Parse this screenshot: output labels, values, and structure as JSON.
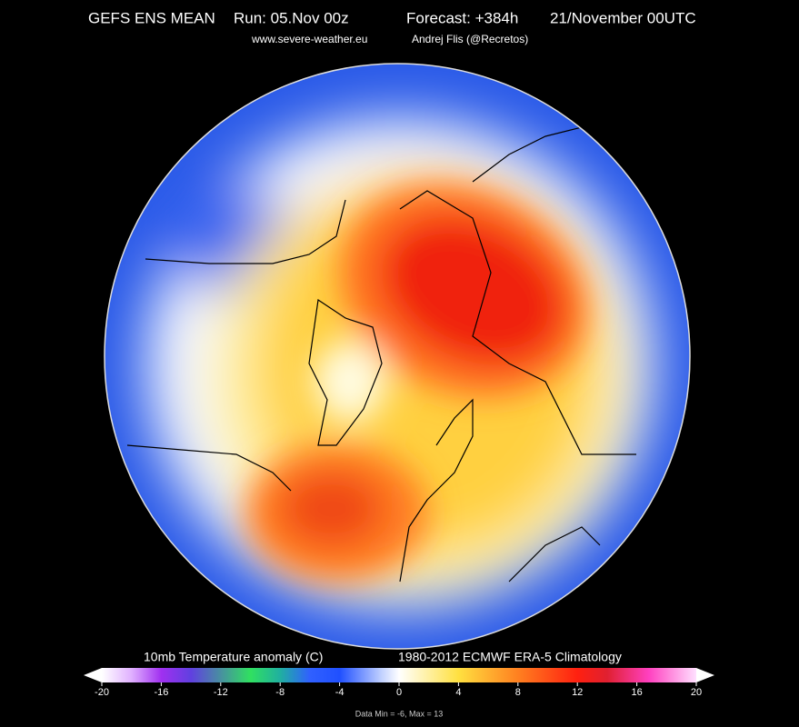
{
  "header": {
    "title": [
      "GEFS ENS MEAN",
      "Run: 05.Nov 00z",
      "Forecast: +384h",
      "21/November 00UTC"
    ],
    "subtitle": [
      "www.severe-weather.eu",
      "Andrej Flis (@Recretos)"
    ]
  },
  "colorbar": {
    "label": "10mb Temperature anomaly (C)",
    "climatology": "1980-2012 ECMWF ERA-5 Climatology",
    "range": [
      -20,
      20
    ],
    "ticks": [
      -20,
      -16,
      -12,
      -8,
      -4,
      0,
      4,
      8,
      12,
      16,
      20
    ]
  },
  "footer": "Data Min = -6, Max = 13"
}
